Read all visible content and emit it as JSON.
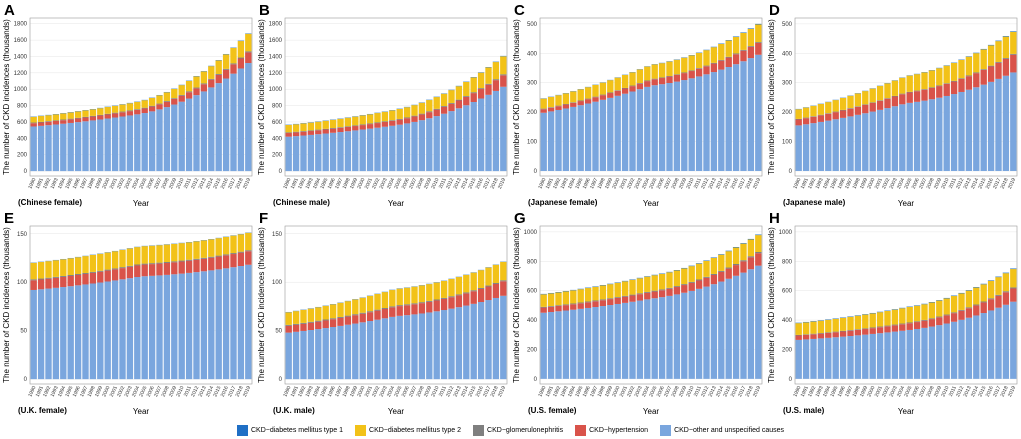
{
  "legend": {
    "items": [
      {
        "label": "CKD−diabetes mellitus type 1",
        "color": "#1f6fc5"
      },
      {
        "label": "CKD−diabetes mellitus type 2",
        "color": "#f2c218"
      },
      {
        "label": "CKD−glomerulonephritis",
        "color": "#7f7f7f"
      },
      {
        "label": "CKD−hypertension",
        "color": "#d9534a"
      },
      {
        "label": "CKD−other and unspecified causes",
        "color": "#7aa6de"
      }
    ]
  },
  "chart_data": [
    {
      "type": "bar",
      "stacked": true,
      "letter": "A",
      "panel_name": "(Chinese female)",
      "xlabel": "Year",
      "ylabel": "The number of CKD incidences (thousands)",
      "ylim": [
        -60,
        1870
      ],
      "yticks": [
        0,
        200,
        400,
        600,
        800,
        1000,
        1200,
        1400,
        1600,
        1800
      ],
      "x_start": 1990,
      "x_end": 2019,
      "series_order": [
        "other",
        "hypertension",
        "glomerulonephritis",
        "dm2",
        "dm1"
      ],
      "series": {
        "other": {
          "start": 545,
          "mid": 700,
          "end": 1320
        },
        "hypertension": {
          "start": 40,
          "mid": 55,
          "end": 130
        },
        "glomerulonephritis": {
          "start": 8,
          "mid": 9,
          "end": 12
        },
        "dm2": {
          "start": 70,
          "mid": 90,
          "end": 215
        },
        "dm1": {
          "start": 4,
          "mid": 4,
          "end": 5
        }
      }
    },
    {
      "type": "bar",
      "stacked": true,
      "letter": "B",
      "panel_name": "(Chinese male)",
      "xlabel": "Year",
      "ylabel": "The number of CKD incidences (thousands)",
      "ylim": [
        -60,
        1870
      ],
      "yticks": [
        0,
        200,
        400,
        600,
        800,
        1000,
        1200,
        1400,
        1600,
        1800
      ],
      "x_start": 1990,
      "x_end": 2019,
      "series_order": [
        "other",
        "hypertension",
        "glomerulonephritis",
        "dm2",
        "dm1"
      ],
      "series": {
        "other": {
          "start": 420,
          "mid": 560,
          "end": 1030
        },
        "hypertension": {
          "start": 45,
          "mid": 60,
          "end": 140
        },
        "glomerulonephritis": {
          "start": 8,
          "mid": 9,
          "end": 12
        },
        "dm2": {
          "start": 90,
          "mid": 120,
          "end": 220
        },
        "dm1": {
          "start": 4,
          "mid": 4,
          "end": 5
        }
      }
    },
    {
      "type": "bar",
      "stacked": true,
      "letter": "C",
      "panel_name": "(Japanese female)",
      "xlabel": "Year",
      "ylabel": "The number of CKD incidences (thousands)",
      "ylim": [
        -17,
        520
      ],
      "yticks": [
        0,
        100,
        200,
        300,
        400,
        500
      ],
      "x_start": 1990,
      "x_end": 2019,
      "series_order": [
        "other",
        "hypertension",
        "glomerulonephritis",
        "dm2",
        "dm1"
      ],
      "series": {
        "other": {
          "start": 198,
          "mid": 290,
          "end": 395
        },
        "hypertension": {
          "start": 12,
          "mid": 20,
          "end": 40
        },
        "glomerulonephritis": {
          "start": 2,
          "mid": 2,
          "end": 3
        },
        "dm2": {
          "start": 34,
          "mid": 48,
          "end": 60
        },
        "dm1": {
          "start": 1,
          "mid": 1,
          "end": 2
        }
      }
    },
    {
      "type": "bar",
      "stacked": true,
      "letter": "D",
      "panel_name": "(Japanese male)",
      "xlabel": "Year",
      "ylabel": "The number of CKD incidences (thousands)",
      "ylim": [
        -17,
        520
      ],
      "yticks": [
        0,
        100,
        200,
        300,
        400,
        500
      ],
      "x_start": 1990,
      "x_end": 2019,
      "series_order": [
        "other",
        "hypertension",
        "glomerulonephritis",
        "dm2",
        "dm1"
      ],
      "series": {
        "other": {
          "start": 155,
          "mid": 230,
          "end": 335
        },
        "hypertension": {
          "start": 20,
          "mid": 35,
          "end": 60
        },
        "glomerulonephritis": {
          "start": 2,
          "mid": 2,
          "end": 3
        },
        "dm2": {
          "start": 33,
          "mid": 55,
          "end": 75
        },
        "dm1": {
          "start": 1,
          "mid": 1,
          "end": 2
        }
      }
    },
    {
      "type": "bar",
      "stacked": true,
      "letter": "E",
      "panel_name": "(U.K. female)",
      "xlabel": "Year",
      "ylabel": "The number of CKD incidences (thousands)",
      "ylim": [
        -5,
        158
      ],
      "yticks": [
        0,
        50,
        100,
        150
      ],
      "x_start": 1990,
      "x_end": 2019,
      "series_order": [
        "other",
        "hypertension",
        "glomerulonephritis",
        "dm2",
        "dm1"
      ],
      "series": {
        "other": {
          "start": 92,
          "mid": 106,
          "end": 118
        },
        "hypertension": {
          "start": 10,
          "mid": 12,
          "end": 14
        },
        "glomerulonephritis": {
          "start": 1,
          "mid": 1,
          "end": 1
        },
        "dm2": {
          "start": 17,
          "mid": 18,
          "end": 18
        },
        "dm1": {
          "start": 0.3,
          "mid": 0.3,
          "end": 0.3
        }
      }
    },
    {
      "type": "bar",
      "stacked": true,
      "letter": "F",
      "panel_name": "(U.K. male)",
      "xlabel": "Year",
      "ylabel": "The number of CKD incidences (thousands)",
      "ylim": [
        -5,
        158
      ],
      "yticks": [
        0,
        50,
        100,
        150
      ],
      "x_start": 1990,
      "x_end": 2019,
      "series_order": [
        "other",
        "hypertension",
        "glomerulonephritis",
        "dm2",
        "dm1"
      ],
      "series": {
        "other": {
          "start": 48,
          "mid": 65,
          "end": 86
        },
        "hypertension": {
          "start": 7,
          "mid": 10,
          "end": 15
        },
        "glomerulonephritis": {
          "start": 1,
          "mid": 1,
          "end": 1
        },
        "dm2": {
          "start": 13,
          "mid": 17,
          "end": 19
        },
        "dm1": {
          "start": 0.3,
          "mid": 0.3,
          "end": 0.3
        }
      }
    },
    {
      "type": "bar",
      "stacked": true,
      "letter": "G",
      "panel_name": "(U.S. female)",
      "xlabel": "Year",
      "ylabel": "The number of CKD incidences (thousands)",
      "ylim": [
        -35,
        1040
      ],
      "yticks": [
        0,
        200,
        400,
        600,
        800,
        1000
      ],
      "x_start": 1990,
      "x_end": 2019,
      "series_order": [
        "other",
        "hypertension",
        "glomerulonephritis",
        "dm2",
        "dm1"
      ],
      "series": {
        "other": {
          "start": 450,
          "mid": 545,
          "end": 770
        },
        "hypertension": {
          "start": 35,
          "mid": 45,
          "end": 85
        },
        "glomerulonephritis": {
          "start": 5,
          "mid": 6,
          "end": 8
        },
        "dm2": {
          "start": 85,
          "mid": 105,
          "end": 115
        },
        "dm1": {
          "start": 3,
          "mid": 3,
          "end": 4
        }
      }
    },
    {
      "type": "bar",
      "stacked": true,
      "letter": "H",
      "panel_name": "(U.S. male)",
      "xlabel": "Year",
      "ylabel": "The number of CKD incidences (thousands)",
      "ylim": [
        -35,
        1040
      ],
      "yticks": [
        0,
        200,
        400,
        600,
        800,
        1000
      ],
      "x_start": 1990,
      "x_end": 2019,
      "series_order": [
        "other",
        "hypertension",
        "glomerulonephritis",
        "dm2",
        "dm1"
      ],
      "series": {
        "other": {
          "start": 265,
          "mid": 330,
          "end": 525
        },
        "hypertension": {
          "start": 30,
          "mid": 45,
          "end": 90
        },
        "glomerulonephritis": {
          "start": 4,
          "mid": 5,
          "end": 7
        },
        "dm2": {
          "start": 80,
          "mid": 105,
          "end": 125
        },
        "dm1": {
          "start": 3,
          "mid": 3,
          "end": 4
        }
      }
    }
  ]
}
